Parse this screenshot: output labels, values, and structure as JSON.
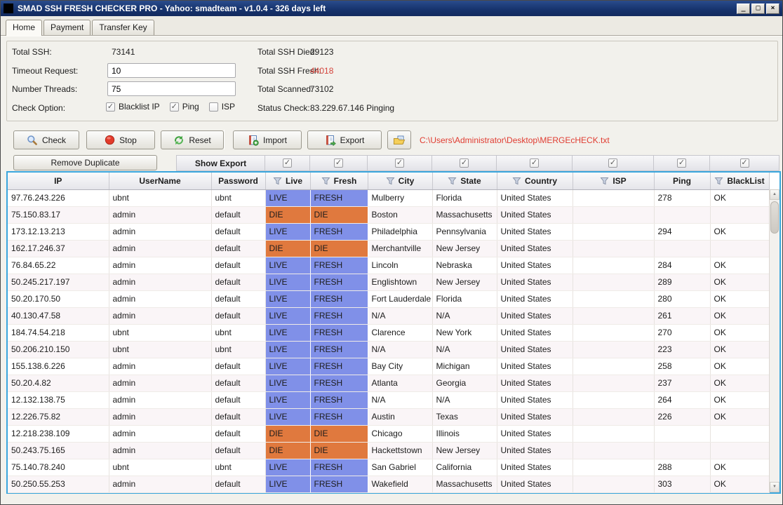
{
  "window": {
    "title": "SMAD SSH FRESH CHECKER PRO - Yahoo: smadteam - v1.0.4 - 326 days left",
    "controls": {
      "minimize": "_",
      "maximize": "□",
      "close": "×"
    }
  },
  "tabs": [
    {
      "label": "Home",
      "active": true
    },
    {
      "label": "Payment",
      "active": false
    },
    {
      "label": "Transfer Key",
      "active": false
    }
  ],
  "stats": {
    "total_ssh_label": "Total SSH:",
    "total_ssh_value": "73141",
    "timeout_label": "Timeout Request:",
    "timeout_value": "10",
    "threads_label": "Number Threads:",
    "threads_value": "75",
    "check_option_label": "Check Option:",
    "check_options": [
      {
        "label": "Blacklist IP",
        "checked": true
      },
      {
        "label": "Ping",
        "checked": true
      },
      {
        "label": "ISP",
        "checked": false
      }
    ],
    "died_label": "Total SSH Died:",
    "died_value": "29123",
    "fresh_label": "Total SSH Fresh:",
    "fresh_value": "44018",
    "scanned_label": "Total Scanned:",
    "scanned_value": "73102",
    "status_label": "Status Check:",
    "status_value": "83.229.67.146 Pinging"
  },
  "toolbar": {
    "check_label": "Check",
    "stop_label": "Stop",
    "reset_label": "Reset",
    "import_label": "Import",
    "export_label": "Export",
    "file_path": "C:\\Users\\Administrator\\Desktop\\MERGEcHECK.txt"
  },
  "grid": {
    "remove_duplicate_label": "Remove Duplicate",
    "show_export_label": "Show Export",
    "check_glyph": "✓",
    "scroll_up_glyph": "▲",
    "scroll_down_glyph": "▼",
    "column_checks": [
      true,
      true,
      true,
      true,
      true,
      true,
      true,
      true
    ],
    "columns": [
      {
        "label": "IP",
        "funnel": false
      },
      {
        "label": "UserName",
        "funnel": false
      },
      {
        "label": "Password",
        "funnel": false
      },
      {
        "label": "Live",
        "funnel": true
      },
      {
        "label": "Fresh",
        "funnel": true
      },
      {
        "label": "City",
        "funnel": true
      },
      {
        "label": "State",
        "funnel": true
      },
      {
        "label": "Country",
        "funnel": true
      },
      {
        "label": "ISP",
        "funnel": true
      },
      {
        "label": "Ping",
        "funnel": false
      },
      {
        "label": "BlackList",
        "funnel": true
      }
    ],
    "rows": [
      [
        "97.76.243.226",
        "ubnt",
        "ubnt",
        "LIVE",
        "FRESH",
        "Mulberry",
        "Florida",
        "United States",
        "",
        "278",
        "OK"
      ],
      [
        "75.150.83.17",
        "admin",
        "default",
        "DIE",
        "DIE",
        "Boston",
        "Massachusetts",
        "United States",
        "",
        "",
        ""
      ],
      [
        "173.12.13.213",
        "admin",
        "default",
        "LIVE",
        "FRESH",
        "Philadelphia",
        "Pennsylvania",
        "United States",
        "",
        "294",
        "OK"
      ],
      [
        "162.17.246.37",
        "admin",
        "default",
        "DIE",
        "DIE",
        "Merchantville",
        "New Jersey",
        "United States",
        "",
        "",
        ""
      ],
      [
        "76.84.65.22",
        "admin",
        "default",
        "LIVE",
        "FRESH",
        "Lincoln",
        "Nebraska",
        "United States",
        "",
        "284",
        "OK"
      ],
      [
        "50.245.217.197",
        "admin",
        "default",
        "LIVE",
        "FRESH",
        "Englishtown",
        "New Jersey",
        "United States",
        "",
        "289",
        "OK"
      ],
      [
        "50.20.170.50",
        "admin",
        "default",
        "LIVE",
        "FRESH",
        "Fort Lauderdale",
        "Florida",
        "United States",
        "",
        "280",
        "OK"
      ],
      [
        "40.130.47.58",
        "admin",
        "default",
        "LIVE",
        "FRESH",
        "N/A",
        "N/A",
        "United States",
        "",
        "261",
        "OK"
      ],
      [
        "184.74.54.218",
        "ubnt",
        "ubnt",
        "LIVE",
        "FRESH",
        "Clarence",
        "New York",
        "United States",
        "",
        "270",
        "OK"
      ],
      [
        "50.206.210.150",
        "ubnt",
        "ubnt",
        "LIVE",
        "FRESH",
        "N/A",
        "N/A",
        "United States",
        "",
        "223",
        "OK"
      ],
      [
        "155.138.6.226",
        "admin",
        "default",
        "LIVE",
        "FRESH",
        "Bay City",
        "Michigan",
        "United States",
        "",
        "258",
        "OK"
      ],
      [
        "50.20.4.82",
        "admin",
        "default",
        "LIVE",
        "FRESH",
        "Atlanta",
        "Georgia",
        "United States",
        "",
        "237",
        "OK"
      ],
      [
        "12.132.138.75",
        "admin",
        "default",
        "LIVE",
        "FRESH",
        "N/A",
        "N/A",
        "United States",
        "",
        "264",
        "OK"
      ],
      [
        "12.226.75.82",
        "admin",
        "default",
        "LIVE",
        "FRESH",
        "Austin",
        "Texas",
        "United States",
        "",
        "226",
        "OK"
      ],
      [
        "12.218.238.109",
        "admin",
        "default",
        "DIE",
        "DIE",
        "Chicago",
        "Illinois",
        "United States",
        "",
        "",
        ""
      ],
      [
        "50.243.75.165",
        "admin",
        "default",
        "DIE",
        "DIE",
        "Hackettstown",
        "New Jersey",
        "United States",
        "",
        "",
        ""
      ],
      [
        "75.140.78.240",
        "ubnt",
        "ubnt",
        "LIVE",
        "FRESH",
        "San Gabriel",
        "California",
        "United States",
        "",
        "288",
        "OK"
      ],
      [
        "50.250.55.253",
        "admin",
        "default",
        "LIVE",
        "FRESH",
        "Wakefield",
        "Massachusetts",
        "United States",
        "",
        "303",
        "OK"
      ]
    ]
  },
  "colors": {
    "live_bg": "#8090e8",
    "die_bg": "#e0793e",
    "fresh_count_red": "#d5443c",
    "file_path_red": "#e03c31",
    "titlebar_blue": "#17346e",
    "grid_border_blue": "#3aa6dd"
  }
}
